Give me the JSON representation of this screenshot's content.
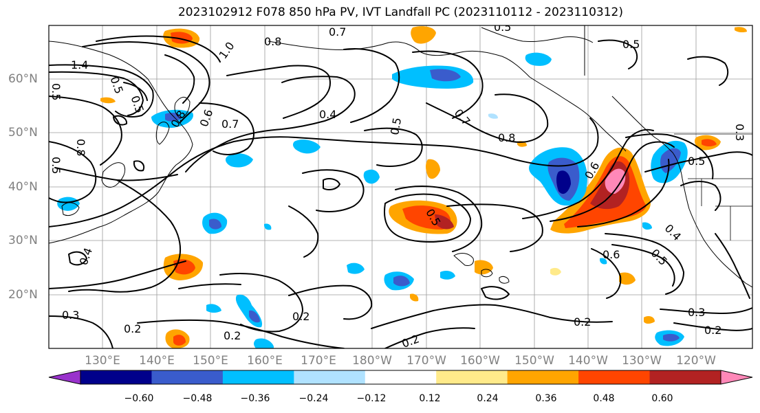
{
  "title": "2023102912 F078 850 hPa PV, IVT Landfall PC (2023110112 - 2023110312)",
  "latitude_labels": [
    "60°N",
    "50°N",
    "40°N",
    "30°N",
    "20°N"
  ],
  "longitude_labels": [
    "130°E",
    "140°E",
    "150°E",
    "160°E",
    "170°E",
    "180°W",
    "170°W",
    "160°W",
    "150°W",
    "140°W",
    "130°W",
    "120°W"
  ],
  "colorbar": {
    "ticks": [
      "−0.60",
      "−0.48",
      "−0.36",
      "−0.24",
      "−0.12",
      "0.12",
      "0.24",
      "0.36",
      "0.48",
      "0.60"
    ],
    "colors": [
      "#9932cc",
      "#00008b",
      "#3a5ccc",
      "#00bfff",
      "#b0e2ff",
      "#ffffff",
      "#ffea8a",
      "#ffa500",
      "#ff4500",
      "#b22222",
      "#ff88b8"
    ]
  },
  "contour_labels": [
    "1.4",
    "1.0",
    "0.8",
    "0.7",
    "0.5",
    "0.5",
    "0.8",
    "0.5",
    "0.8",
    "0.5",
    "0.5",
    "0.6",
    "0.7",
    "0.4",
    "0.5",
    "0.7",
    "0.8",
    "0.6",
    "0.5",
    "0.5",
    "0.4",
    "0.5",
    "0.6",
    "0.5",
    "0.3",
    "0.3",
    "0.2",
    "0.2",
    "0.2",
    "0.2",
    "0.2",
    "0.3",
    "0.2",
    "0.4"
  ]
}
